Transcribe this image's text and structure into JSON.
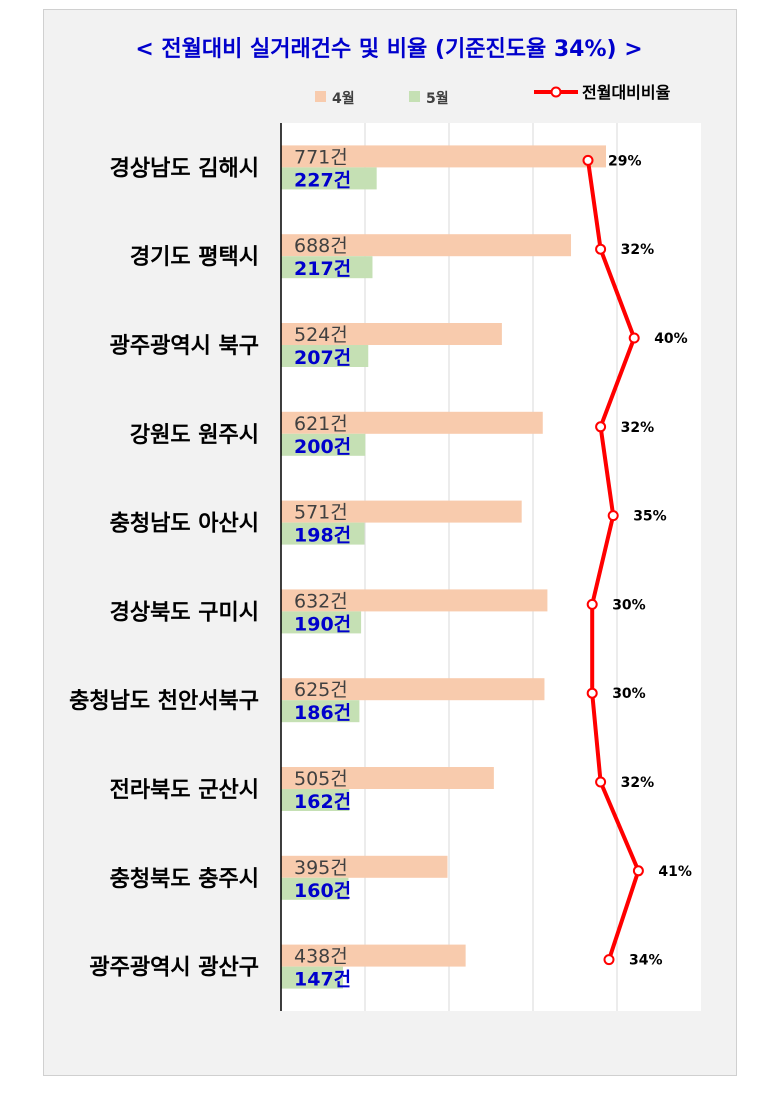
{
  "chart_data": {
    "type": "bar",
    "orientation": "horizontal",
    "title": "< 전월대비 실거래건수 및 비율 (기준진도율 34%) >",
    "categories": [
      "경상남도 김해시",
      "경기도 평택시",
      "광주광역시 북구",
      "강원도 원주시",
      "충청남도 아산시",
      "경상북도 구미시",
      "충청남도 천안서북구",
      "전라북도 군산시",
      "충청북도 충주시",
      "광주광역시 광산구"
    ],
    "series": [
      {
        "name": "4월",
        "type": "bar",
        "color": "#f8cbad",
        "values": [
          771,
          688,
          524,
          621,
          571,
          632,
          625,
          505,
          395,
          438
        ],
        "labels": [
          "771건",
          "688건",
          "524건",
          "621건",
          "571건",
          "632건",
          "625건",
          "505건",
          "395건",
          "438건"
        ]
      },
      {
        "name": "5월",
        "type": "bar",
        "color": "#c5e0b4",
        "values": [
          227,
          217,
          207,
          200,
          198,
          190,
          186,
          162,
          160,
          147
        ],
        "labels": [
          "227건",
          "217건",
          "207건",
          "200건",
          "198건",
          "190건",
          "186건",
          "162건",
          "160건",
          "147건"
        ]
      },
      {
        "name": "전월대비비율",
        "type": "line",
        "color": "#ff0000",
        "values": [
          29,
          32,
          40,
          32,
          35,
          30,
          30,
          32,
          41,
          34
        ],
        "labels": [
          "29%",
          "32%",
          "40%",
          "32%",
          "35%",
          "30%",
          "30%",
          "32%",
          "41%",
          "34%"
        ]
      }
    ],
    "xlim": [
      0,
      1000
    ],
    "legend": {
      "position": "top",
      "bar_labels": [
        "4월",
        "5월"
      ],
      "line_label": "전월대비비율"
    },
    "grid": true
  }
}
